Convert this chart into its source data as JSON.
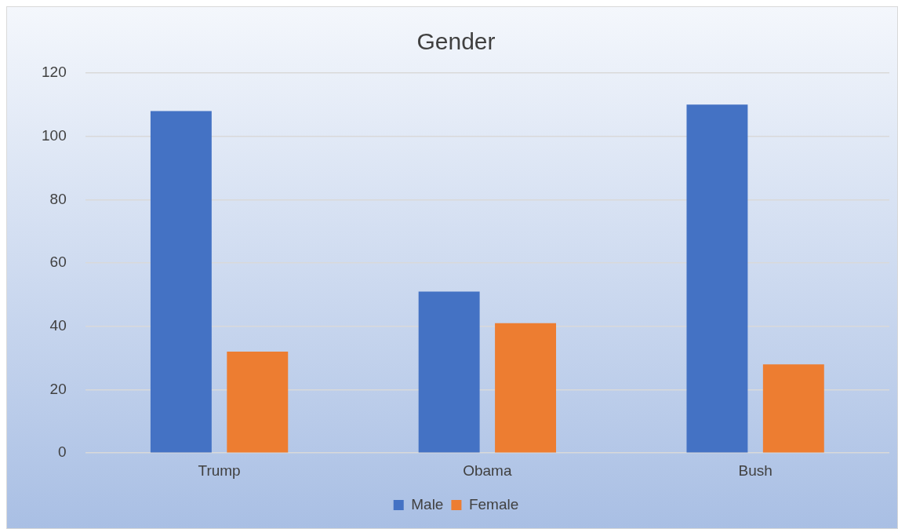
{
  "chart_data": {
    "type": "bar",
    "title": "Gender",
    "categories": [
      "Trump",
      "Obama",
      "Bush"
    ],
    "series": [
      {
        "name": "Male",
        "color": "#4472c4",
        "values": [
          108,
          51,
          110
        ]
      },
      {
        "name": "Female",
        "color": "#ed7d31",
        "values": [
          32,
          41,
          28
        ]
      }
    ],
    "ylim": [
      0,
      120
    ],
    "yticks": [
      0,
      20,
      40,
      60,
      80,
      100,
      120
    ],
    "grid": "y",
    "legend": "bottom"
  }
}
